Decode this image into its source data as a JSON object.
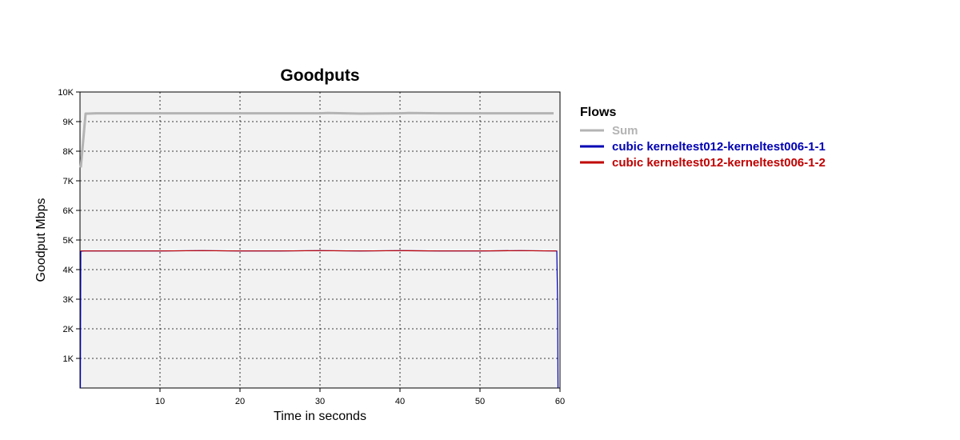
{
  "chart_data": {
    "type": "line",
    "title": "Goodputs",
    "xlabel": "Time in seconds",
    "ylabel": "Goodput Mbps",
    "xlim": [
      0,
      60
    ],
    "ylim": [
      0,
      10000
    ],
    "xticks": [
      10,
      20,
      30,
      40,
      50,
      60
    ],
    "yticks": [
      1000,
      2000,
      3000,
      4000,
      5000,
      6000,
      7000,
      8000,
      9000,
      10000
    ],
    "xtick_labels": [
      "10",
      "20",
      "30",
      "40",
      "50",
      "60"
    ],
    "ytick_labels": [
      "1K",
      "2K",
      "3K",
      "4K",
      "5K",
      "6K",
      "7K",
      "8K",
      "9K",
      "10K"
    ],
    "grid": true,
    "plot_background": "#f2f2f2",
    "legend": {
      "title": "Flows",
      "position": "right"
    },
    "series": [
      {
        "name": "Sum",
        "color": "#b4b4b4",
        "x": [
          0.1,
          0.7,
          1,
          2,
          5,
          10,
          15,
          20,
          25,
          30,
          31,
          35,
          40,
          41,
          45,
          50,
          55,
          59.2
        ],
        "y": [
          7450,
          9270,
          9270,
          9280,
          9280,
          9280,
          9280,
          9280,
          9280,
          9280,
          9290,
          9270,
          9280,
          9290,
          9280,
          9280,
          9280,
          9280
        ]
      },
      {
        "name": "cubic kerneltest012-kerneltest006-1-1",
        "color": "#0000b4",
        "x": [
          0.05,
          0.1,
          0.5,
          5,
          10,
          15,
          20,
          25,
          30,
          35,
          40,
          45,
          50,
          55,
          59.6,
          59.7,
          59.75
        ],
        "y": [
          0,
          4620,
          4630,
          4630,
          4630,
          4640,
          4630,
          4630,
          4640,
          4630,
          4640,
          4630,
          4630,
          4640,
          4630,
          2800,
          0
        ]
      },
      {
        "name": "cubic kerneltest012-kerneltest006-1-2",
        "color": "#c00000",
        "x": [
          0.1,
          5,
          10,
          15,
          20,
          25,
          30,
          35,
          40,
          45,
          50,
          55,
          59.6
        ],
        "y": [
          4630,
          4630,
          4630,
          4640,
          4630,
          4630,
          4640,
          4630,
          4640,
          4630,
          4630,
          4640,
          4630
        ]
      }
    ]
  }
}
